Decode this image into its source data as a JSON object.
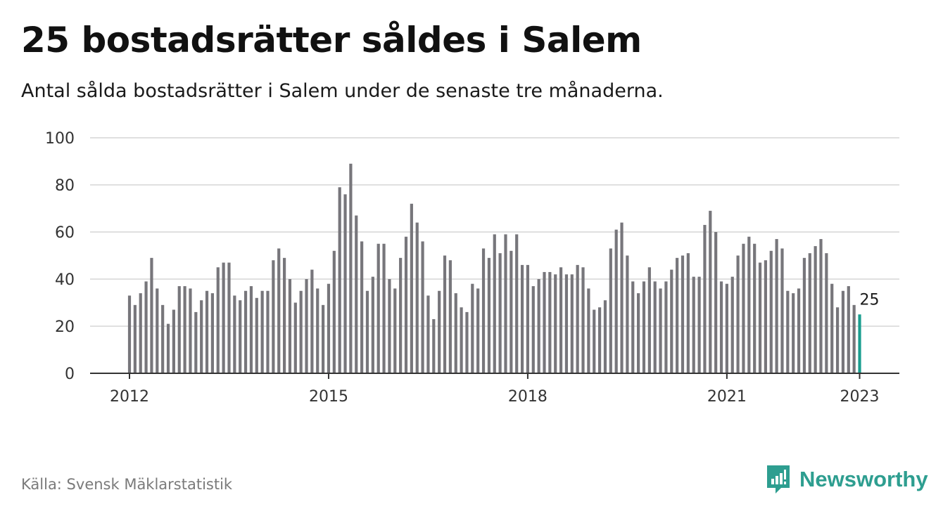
{
  "header": {
    "title": "25 bostadsrätter såldes i Salem",
    "subtitle": "Antal sålda bostadsrätter i Salem under de senaste tre månaderna."
  },
  "footer": {
    "source": "Källa: Svensk Mäklarstatistik",
    "brand": "Newsworthy"
  },
  "colors": {
    "bar": "#77767b",
    "highlight": "#1a9e8f",
    "grid": "#d6d6d6",
    "axis": "#333333",
    "brand": "#2e9e90"
  },
  "chart_data": {
    "type": "bar",
    "title": "",
    "xlabel": "",
    "ylabel": "",
    "ylim": [
      0,
      100
    ],
    "yticks": [
      0,
      20,
      40,
      60,
      80,
      100
    ],
    "xticks": [
      "2012",
      "2015",
      "2018",
      "2021",
      "2023"
    ],
    "grid": true,
    "x_start": "2012-01",
    "x_end": "2023-01",
    "values": [
      33,
      29,
      34,
      39,
      49,
      36,
      29,
      21,
      27,
      37,
      37,
      36,
      26,
      31,
      35,
      34,
      45,
      47,
      47,
      33,
      31,
      35,
      37,
      32,
      35,
      35,
      48,
      53,
      49,
      40,
      30,
      35,
      40,
      44,
      36,
      29,
      38,
      52,
      79,
      76,
      89,
      67,
      56,
      35,
      41,
      55,
      55,
      40,
      36,
      49,
      58,
      72,
      64,
      56,
      33,
      23,
      35,
      50,
      48,
      34,
      28,
      26,
      38,
      36,
      53,
      49,
      59,
      51,
      59,
      52,
      59,
      46,
      46,
      37,
      40,
      43,
      43,
      42,
      45,
      42,
      42,
      46,
      45,
      36,
      27,
      28,
      31,
      53,
      61,
      64,
      50,
      39,
      34,
      39,
      45,
      39,
      36,
      39,
      44,
      49,
      50,
      51,
      41,
      41,
      63,
      69,
      60,
      39,
      38,
      41,
      50,
      55,
      58,
      55,
      47,
      48,
      52,
      57,
      53,
      35,
      34,
      36,
      49,
      51,
      54,
      57,
      51,
      38,
      28,
      35,
      37,
      29,
      25
    ],
    "highlight_label": "25"
  }
}
